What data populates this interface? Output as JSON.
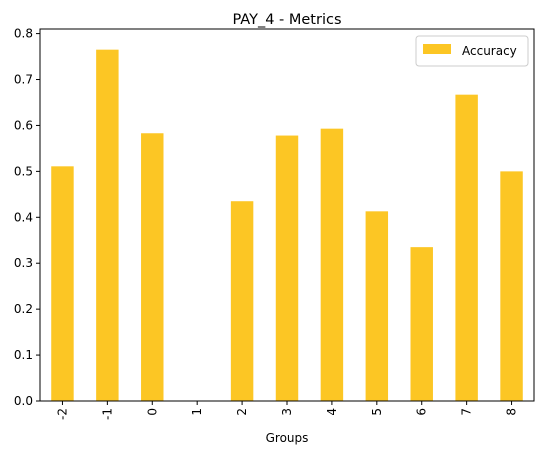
{
  "chart_data": {
    "type": "bar",
    "title": "PAY_4 - Metrics",
    "xlabel": "Groups",
    "ylabel": "",
    "categories": [
      "-2",
      "-1",
      "0",
      "1",
      "2",
      "3",
      "4",
      "5",
      "6",
      "7",
      "8"
    ],
    "series": [
      {
        "name": "Accuracy",
        "values": [
          0.511,
          0.765,
          0.583,
          0.0,
          0.435,
          0.578,
          0.593,
          0.413,
          0.335,
          0.667,
          0.5
        ],
        "color": "#fcc624"
      }
    ],
    "ylim": [
      0,
      0.81
    ],
    "yticks": [
      "0.0",
      "0.1",
      "0.2",
      "0.3",
      "0.4",
      "0.5",
      "0.6",
      "0.7",
      "0.8"
    ],
    "grid": false,
    "legend_position": "top-right"
  }
}
